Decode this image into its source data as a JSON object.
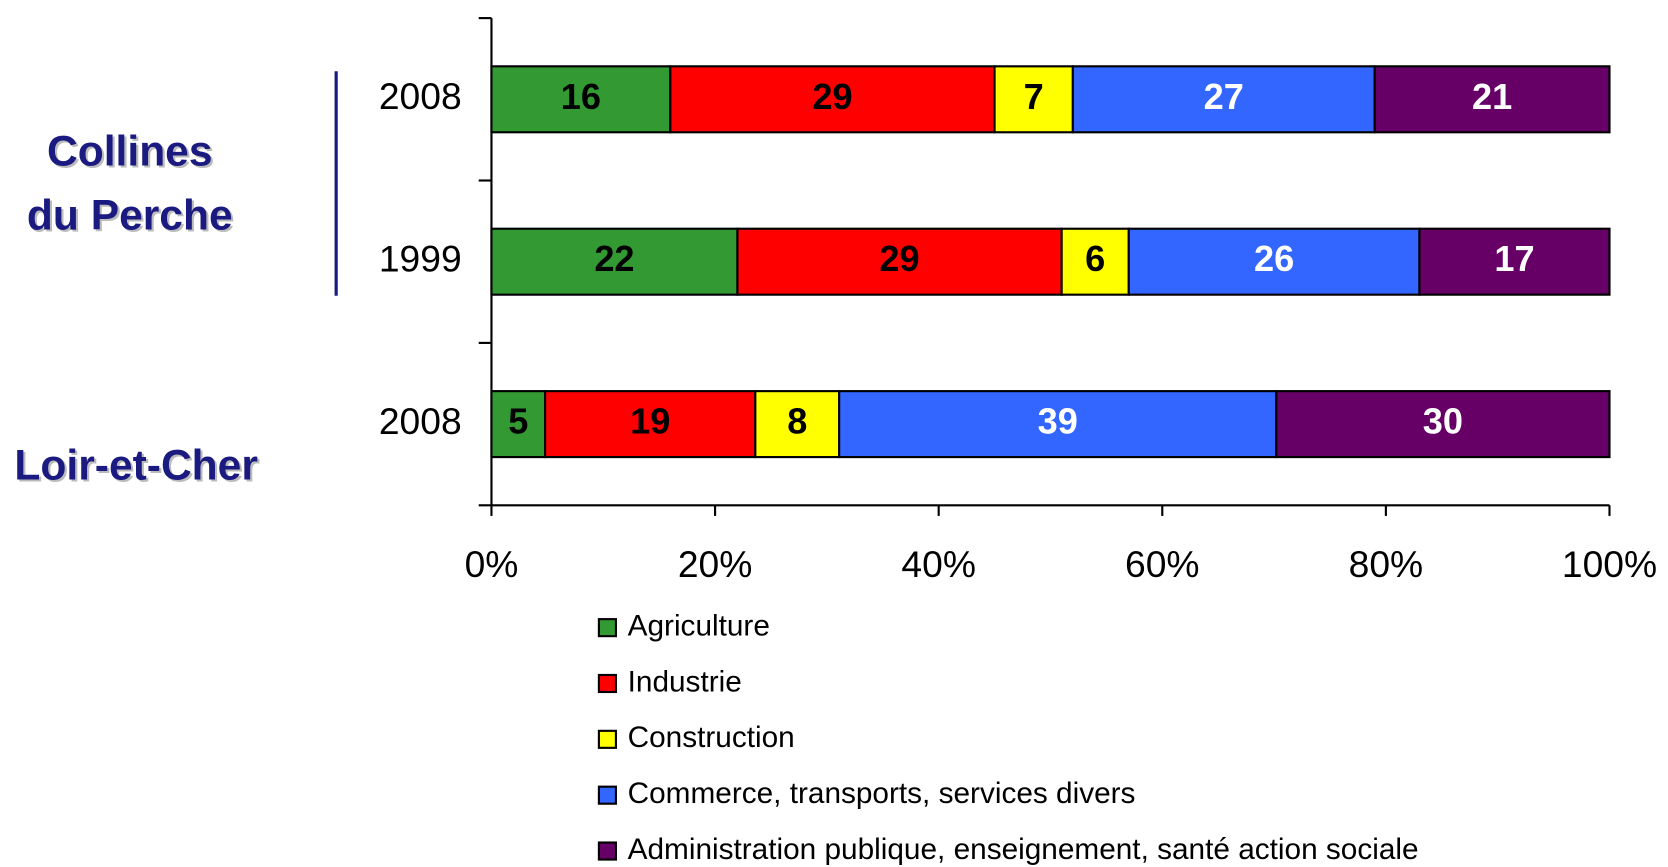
{
  "chart_data": {
    "type": "stacked_barh",
    "categories": [
      "2008",
      "1999",
      "2008"
    ],
    "group_labels": [
      [
        "Collines",
        "du Perche"
      ],
      [
        "Loir-et-Cher"
      ]
    ],
    "series": [
      {
        "name": "Agriculture",
        "color": "#339933",
        "label_color": "#000000",
        "values": [
          16,
          22,
          4.8
        ],
        "value_labels": [
          "16",
          "22",
          "5"
        ]
      },
      {
        "name": "Industrie",
        "color": "#ff0000",
        "label_color": "#000000",
        "values": [
          29,
          29,
          18.8
        ],
        "value_labels": [
          "29",
          "29",
          "19"
        ]
      },
      {
        "name": "Construction",
        "color": "#ffff00",
        "label_color": "#000000",
        "values": [
          7,
          6,
          7.5
        ],
        "value_labels": [
          "7",
          "6",
          "8"
        ]
      },
      {
        "name": "Commerce, transports, services divers",
        "color": "#3366ff",
        "label_color": "#ffffff",
        "values": [
          27,
          26,
          39.1
        ],
        "value_labels": [
          "27",
          "26",
          "39"
        ]
      },
      {
        "name": "Administration publique, enseignement, santé action sociale",
        "color": "#660066",
        "label_color": "#ffffff",
        "values": [
          21,
          17,
          29.8
        ],
        "value_labels": [
          "21",
          "17",
          "30"
        ]
      }
    ],
    "xlim": [
      0,
      100
    ],
    "xticks": [
      {
        "value": 0,
        "label": "0%"
      },
      {
        "value": 20,
        "label": "20%"
      },
      {
        "value": 40,
        "label": "40%"
      },
      {
        "value": 60,
        "label": "60%"
      },
      {
        "value": 80,
        "label": "80%"
      },
      {
        "value": 100,
        "label": "100%"
      }
    ]
  }
}
